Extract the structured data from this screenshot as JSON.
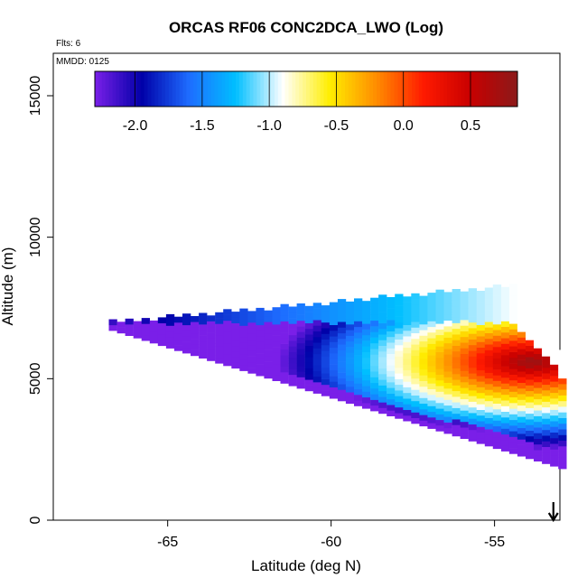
{
  "chart_data": {
    "type": "heatmap",
    "title": "ORCAS RF06 CONC2DCA_LWO (Log)",
    "annotations": {
      "flights": "Flts: 6",
      "date": "MMDD: 0125"
    },
    "xlabel": "Latitude (deg N)",
    "ylabel": "Altitude (m)",
    "xlim": [
      -68.5,
      -53.0
    ],
    "ylim": [
      0,
      16500
    ],
    "xticks": [
      -65,
      -60,
      -55
    ],
    "yticks": [
      0,
      5000,
      10000,
      15000
    ],
    "colorbar": {
      "range": [
        -2.3,
        0.85
      ],
      "ticks": [
        -2.0,
        -1.5,
        -1.0,
        -0.5,
        0.0,
        0.5
      ],
      "tick_labels": [
        "-2.0",
        "-1.5",
        "-1.0",
        "-0.5",
        "0.0",
        "0.5"
      ],
      "colors": [
        "#7a1fe8",
        "#0000a8",
        "#1e6cff",
        "#00bfff",
        "#ffffff",
        "#ffee00",
        "#ff8c00",
        "#ff1a00",
        "#c80000",
        "#8b1a1a"
      ]
    },
    "field": {
      "description_of_values": "log10 concentration by latitude/altitude bin",
      "lat_step": 0.25,
      "alt_step": 200,
      "upper_edge": [
        [
          -66.8,
          6900
        ],
        [
          -54.5,
          8200
        ]
      ],
      "lower_edge": [
        [
          -66.8,
          6700
        ],
        [
          -53.0,
          1800
        ]
      ],
      "core": {
        "lat": -54.0,
        "alt": 5500,
        "value": 0.8
      },
      "high_dark_band": {
        "alt": 6800,
        "value": -2.1
      }
    },
    "arrow_marker": {
      "lat": -53.2,
      "alt": 0
    }
  }
}
